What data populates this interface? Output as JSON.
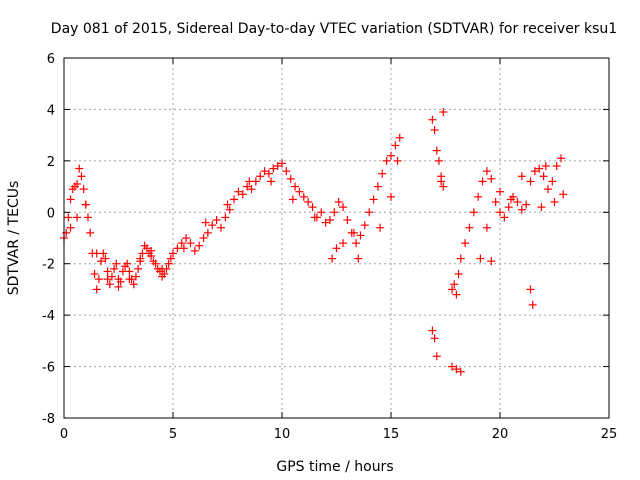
{
  "chart_data": {
    "type": "scatter",
    "title": "Day 081 of 2015, Sidereal Day-to-day VTEC variation (SDTVAR) for receiver ksu1",
    "xlabel": "GPS time / hours",
    "ylabel": "SDTVAR / TECUs",
    "xlim": [
      0,
      25
    ],
    "ylim": [
      -8,
      6
    ],
    "xticks": [
      "0",
      "5",
      "10",
      "15",
      "20",
      "25"
    ],
    "yticks": [
      "-8",
      "-6",
      "-4",
      "-2",
      "0",
      "2",
      "4",
      "6"
    ],
    "grid": true,
    "marker": "+",
    "color": "#ff0000",
    "series": [
      {
        "name": "SDTVAR",
        "x": [
          0.0,
          0.1,
          0.2,
          0.3,
          0.4,
          0.5,
          0.6,
          0.7,
          0.8,
          0.9,
          1.0,
          1.1,
          1.2,
          1.3,
          1.4,
          1.5,
          1.6,
          1.7,
          1.8,
          1.9,
          2.0,
          2.1,
          2.2,
          2.3,
          2.4,
          2.5,
          2.6,
          2.7,
          2.8,
          2.9,
          3.0,
          3.1,
          3.2,
          3.3,
          3.4,
          3.5,
          3.6,
          3.7,
          3.8,
          3.9,
          4.0,
          4.1,
          4.2,
          4.3,
          4.4,
          4.5,
          4.6,
          4.7,
          4.8,
          4.9,
          5.0,
          5.2,
          5.4,
          5.6,
          5.8,
          6.0,
          6.2,
          6.4,
          6.6,
          6.8,
          7.0,
          7.2,
          7.4,
          7.6,
          7.8,
          8.0,
          8.2,
          8.4,
          8.6,
          8.8,
          9.0,
          9.2,
          9.4,
          9.6,
          9.8,
          10.0,
          10.2,
          10.4,
          10.6,
          10.8,
          11.0,
          11.2,
          11.4,
          11.6,
          11.8,
          12.0,
          12.2,
          12.4,
          12.6,
          12.8,
          13.0,
          13.2,
          13.4,
          13.6,
          13.8,
          14.0,
          14.2,
          14.4,
          14.6,
          14.8,
          15.0,
          15.2,
          15.4,
          16.9,
          17.0,
          17.1,
          17.2,
          17.3,
          17.4,
          17.8,
          17.9,
          18.0,
          18.1,
          18.2,
          18.4,
          18.6,
          18.8,
          19.0,
          19.2,
          19.4,
          19.6,
          19.8,
          20.0,
          20.2,
          20.4,
          20.6,
          20.8,
          21.0,
          21.2,
          21.4,
          21.6,
          21.8,
          22.0,
          22.2,
          22.4,
          22.6,
          22.8,
          0.3,
          0.6,
          1.0,
          1.5,
          2.0,
          2.5,
          3.0,
          3.5,
          4.0,
          4.5,
          5.5,
          6.5,
          7.5,
          8.5,
          9.5,
          10.5,
          11.5,
          12.5,
          13.5,
          14.5,
          15.0,
          15.3,
          12.3,
          12.8,
          13.3,
          16.9,
          17.0,
          17.1,
          17.3,
          17.4,
          17.8,
          18.0,
          18.2,
          19.1,
          19.4,
          19.6,
          20.0,
          20.5,
          21.0,
          21.4,
          21.5,
          21.9,
          22.1,
          22.5,
          22.9
        ],
        "y": [
          -1.0,
          -0.8,
          -0.2,
          0.5,
          0.9,
          1.0,
          1.1,
          1.7,
          1.4,
          0.9,
          0.3,
          -0.2,
          -0.8,
          -1.6,
          -2.4,
          -3.0,
          -2.6,
          -1.9,
          -1.6,
          -1.8,
          -2.3,
          -2.8,
          -2.5,
          -2.2,
          -2.0,
          -2.6,
          -2.7,
          -2.3,
          -2.1,
          -2.0,
          -2.3,
          -2.6,
          -2.8,
          -2.5,
          -2.2,
          -1.9,
          -1.6,
          -1.3,
          -1.4,
          -1.6,
          -1.7,
          -1.9,
          -2.0,
          -2.2,
          -2.3,
          -2.5,
          -2.4,
          -2.2,
          -2.0,
          -1.8,
          -1.6,
          -1.4,
          -1.2,
          -1.0,
          -1.2,
          -1.5,
          -1.3,
          -1.0,
          -0.8,
          -0.5,
          -0.3,
          -0.6,
          -0.2,
          0.1,
          0.5,
          0.8,
          0.7,
          1.0,
          0.9,
          1.2,
          1.4,
          1.6,
          1.5,
          1.7,
          1.8,
          1.9,
          1.6,
          1.3,
          1.0,
          0.8,
          0.6,
          0.4,
          0.2,
          -0.2,
          0.0,
          -0.4,
          -0.3,
          0.0,
          0.4,
          0.2,
          -0.3,
          -0.8,
          -1.2,
          -0.9,
          -0.5,
          0.0,
          0.5,
          1.0,
          1.5,
          2.0,
          2.2,
          2.6,
          2.9,
          3.6,
          3.2,
          2.4,
          2.0,
          1.4,
          1.0,
          -3.0,
          -2.8,
          -3.2,
          -2.4,
          -1.8,
          -1.2,
          -0.6,
          0.0,
          0.6,
          1.2,
          1.6,
          1.3,
          0.4,
          0.0,
          -0.2,
          0.2,
          0.6,
          0.4,
          0.1,
          0.3,
          1.2,
          1.6,
          1.7,
          1.4,
          0.9,
          1.2,
          1.8,
          2.1,
          -0.6,
          -0.2,
          0.3,
          -1.6,
          -2.6,
          -2.9,
          -2.6,
          -1.8,
          -1.5,
          -2.2,
          -1.4,
          -0.4,
          0.3,
          1.2,
          1.2,
          0.5,
          -0.2,
          -1.4,
          -1.8,
          -0.6,
          0.6,
          2.0,
          -1.8,
          -1.2,
          -0.8,
          -4.6,
          -4.9,
          -5.6,
          1.2,
          3.9,
          -6.0,
          -6.1,
          -6.2,
          -1.8,
          -0.6,
          -1.9,
          0.8,
          0.5,
          1.4,
          -3.0,
          -3.6,
          0.2,
          1.8,
          0.4,
          0.7
        ]
      }
    ]
  }
}
